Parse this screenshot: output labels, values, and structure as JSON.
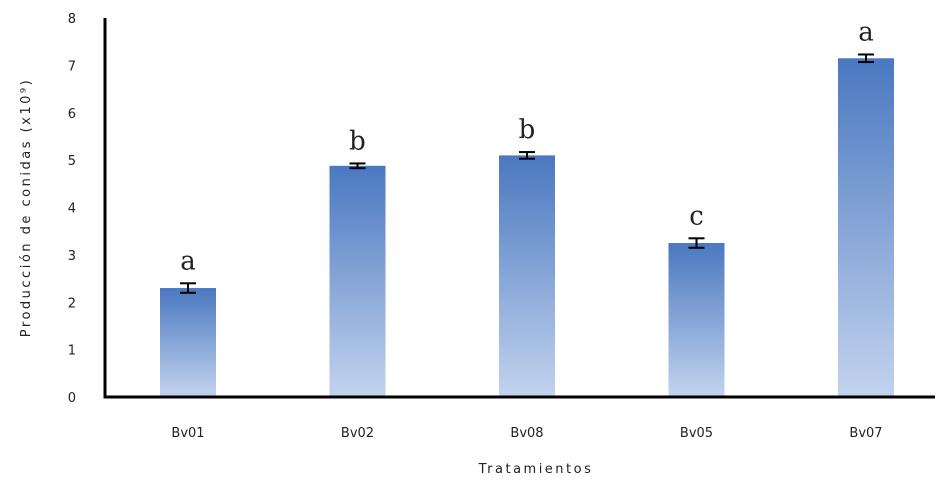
{
  "chart_data": {
    "type": "bar",
    "xlabel": "Tratamientos",
    "ylabel": "Producción de conidas (x10⁹)",
    "ylim": [
      0,
      8
    ],
    "yticks": [
      0,
      1,
      2,
      3,
      4,
      5,
      6,
      7,
      8
    ],
    "categories": [
      "Bv01",
      "Bv02",
      "Bv08",
      "Bv05",
      "Bv07"
    ],
    "values": [
      2.3,
      4.88,
      5.1,
      3.25,
      7.15
    ],
    "errors": [
      0.1,
      0.05,
      0.07,
      0.1,
      0.08
    ],
    "annotations": [
      "a",
      "b",
      "b",
      "c",
      "a"
    ],
    "grid": false,
    "colors": {
      "bar_top": "#4a78c0",
      "bar_bottom": "#c3d3ee",
      "axis": "#000000",
      "error_bar": "#000000"
    }
  }
}
